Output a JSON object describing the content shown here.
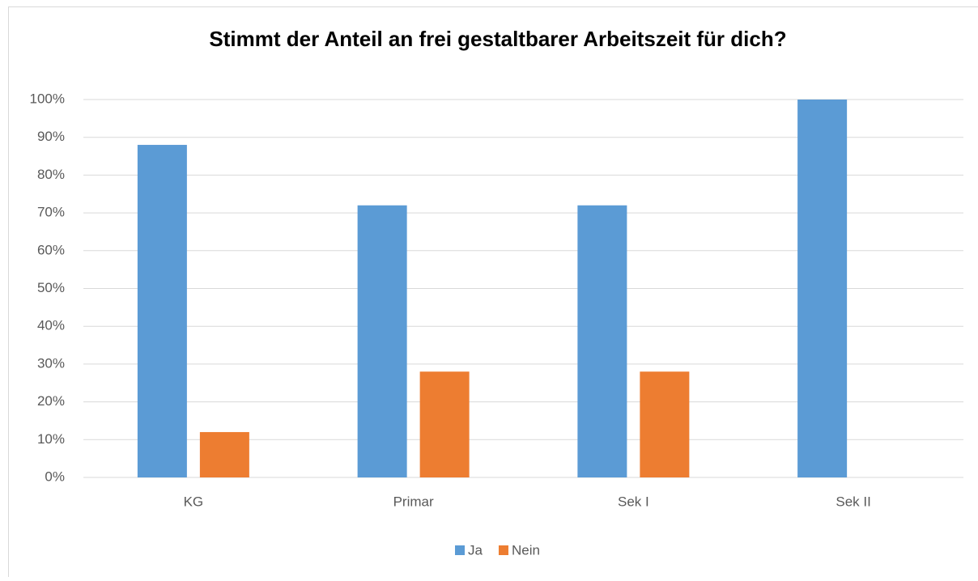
{
  "chart_data": {
    "type": "bar",
    "title": "Stimmt der Anteil an frei gestaltbarer Arbeitszeit für dich?",
    "categories": [
      "KG",
      "Primar",
      "Sek I",
      "Sek II"
    ],
    "series": [
      {
        "name": "Ja",
        "color": "#5b9bd5",
        "values": [
          88,
          72,
          72,
          100
        ]
      },
      {
        "name": "Nein",
        "color": "#ed7d31",
        "values": [
          12,
          28,
          28,
          0
        ]
      }
    ],
    "ylim": [
      0,
      100
    ],
    "yticks": [
      {
        "value": 0,
        "label": "0%"
      },
      {
        "value": 10,
        "label": "10%"
      },
      {
        "value": 20,
        "label": "20%"
      },
      {
        "value": 30,
        "label": "30%"
      },
      {
        "value": 40,
        "label": "40%"
      },
      {
        "value": 50,
        "label": "50%"
      },
      {
        "value": 60,
        "label": "60%"
      },
      {
        "value": 70,
        "label": "70%"
      },
      {
        "value": 80,
        "label": "80%"
      },
      {
        "value": 90,
        "label": "90%"
      },
      {
        "value": 100,
        "label": "100%"
      }
    ],
    "grid": true,
    "legend": "bottom"
  }
}
